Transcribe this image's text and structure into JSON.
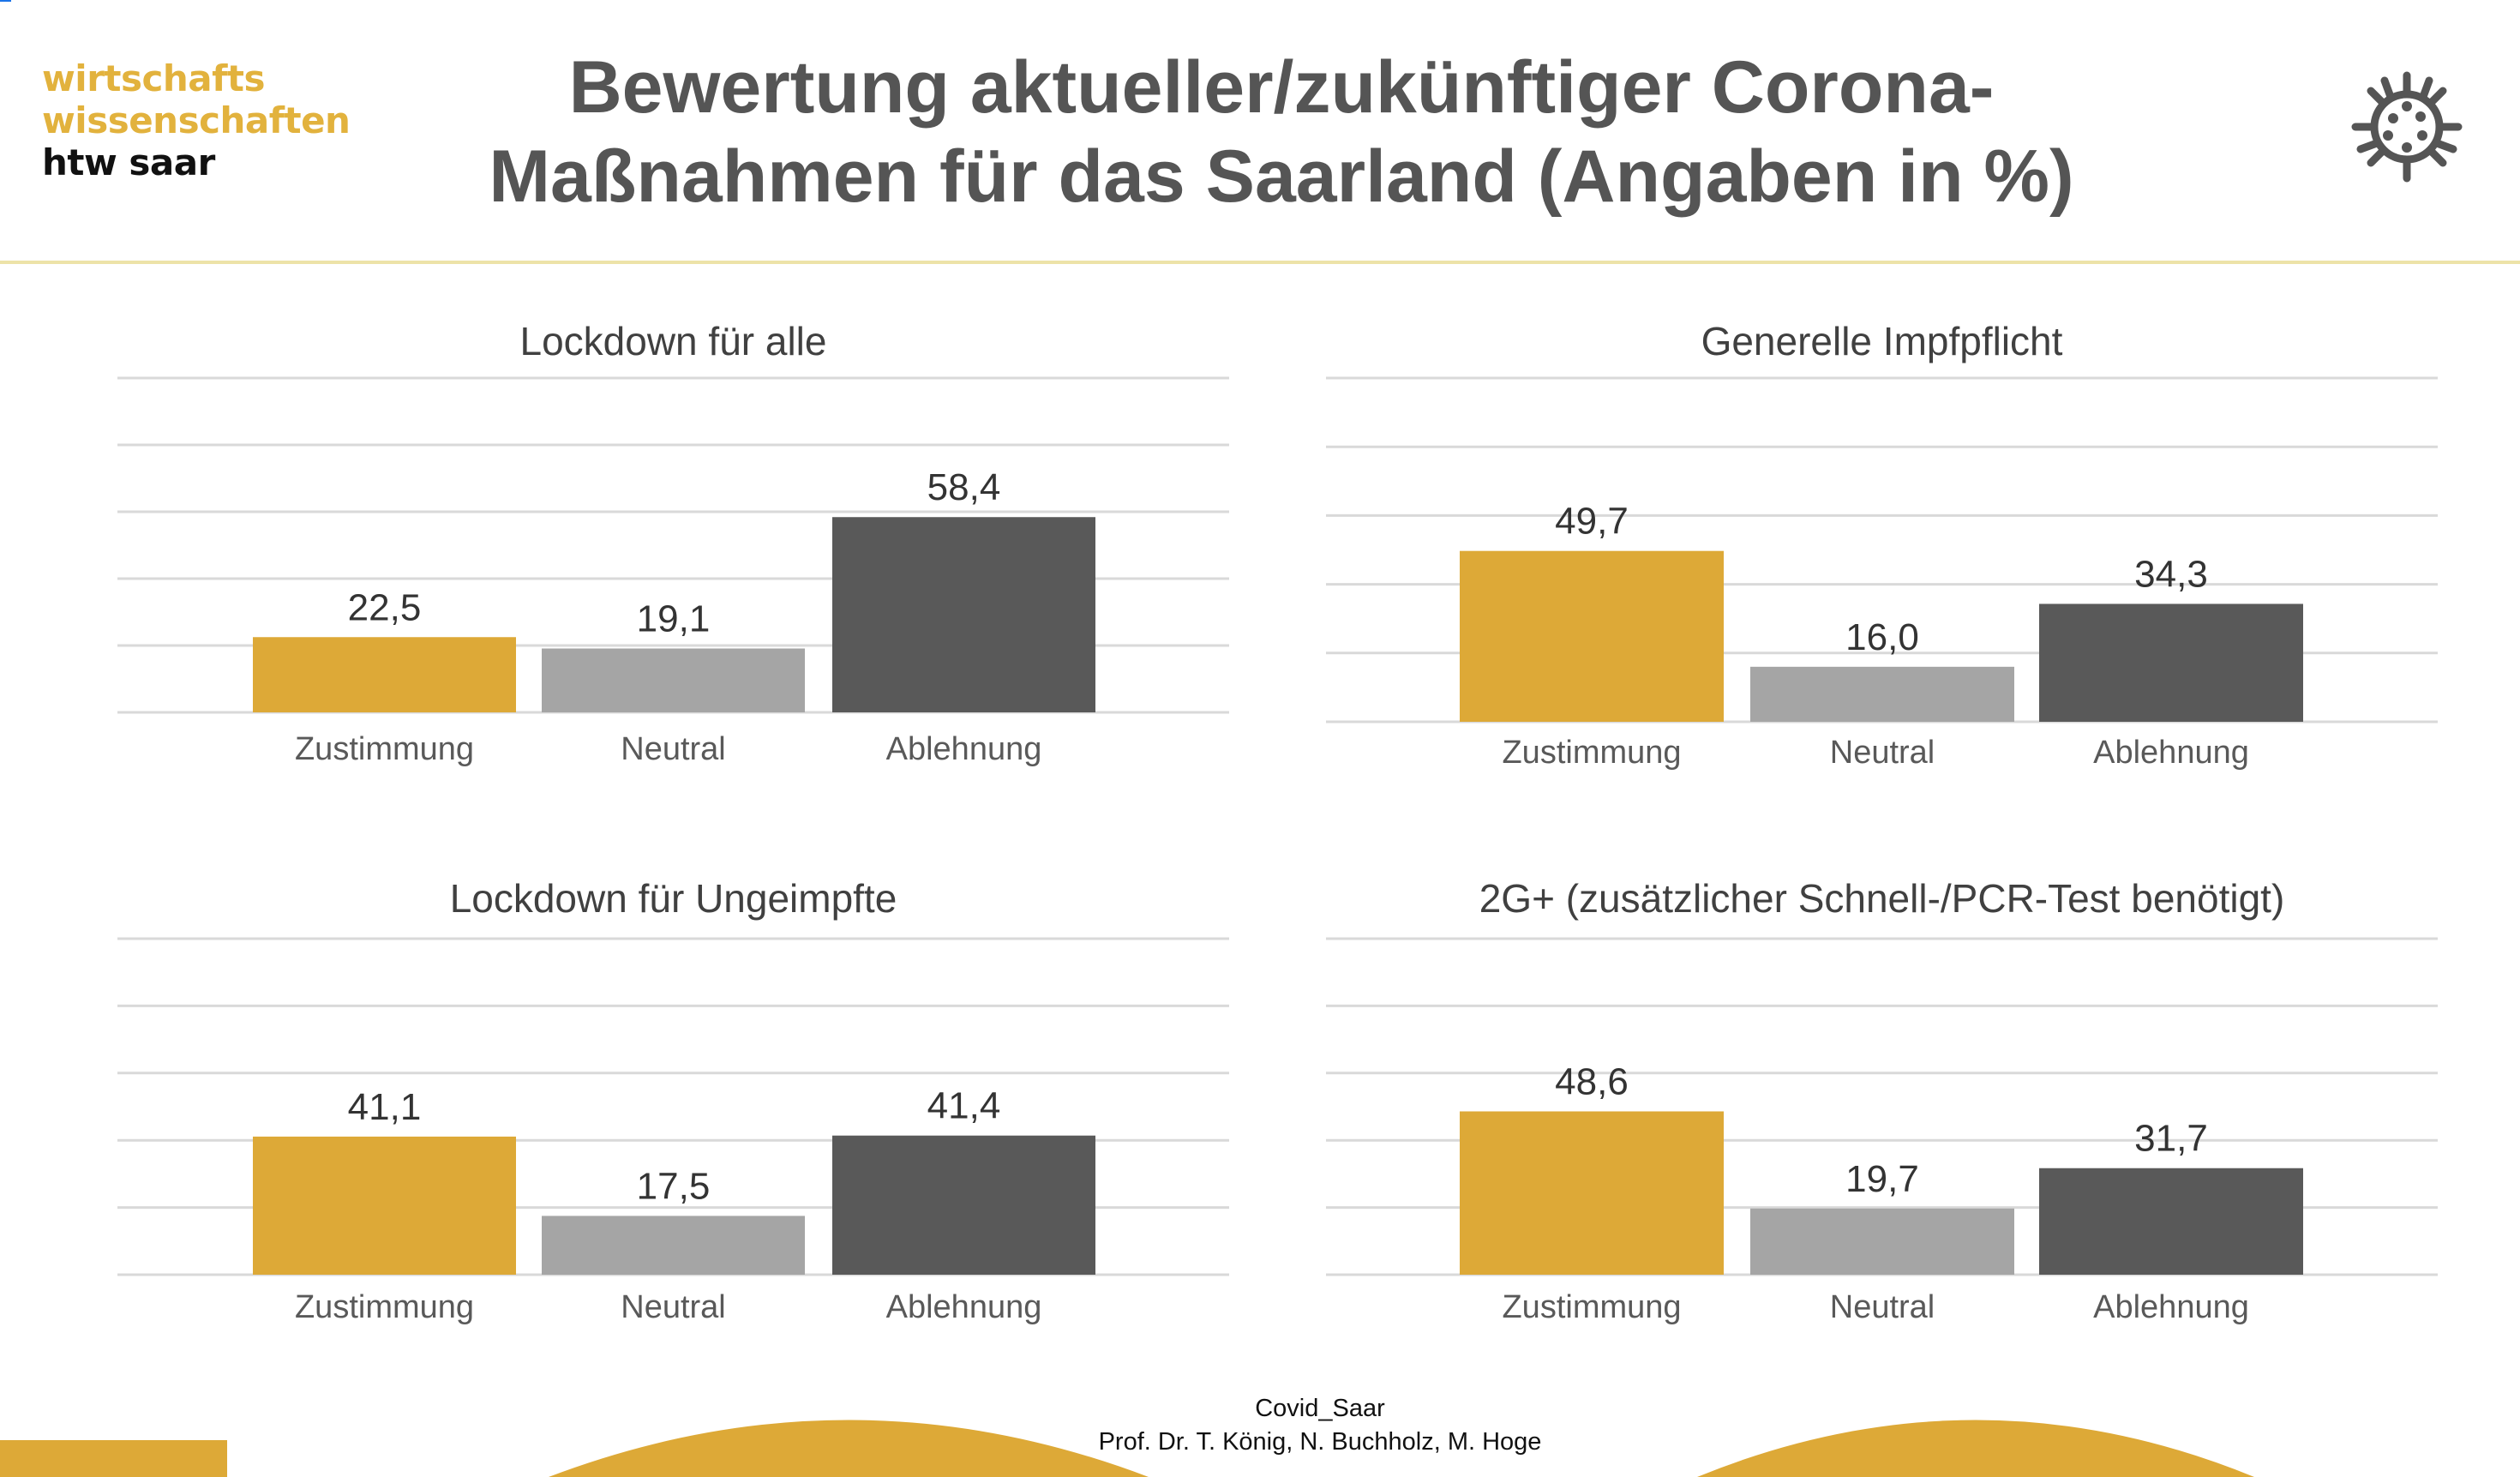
{
  "logo": {
    "line1": "wirtschafts",
    "line2": "wissenschaften",
    "line3": "htw saar"
  },
  "header": {
    "title_line1": "Bewertung aktueller/zukünftiger Corona-",
    "title_line2": "Maßnahmen für das Saarland (Angaben in %)",
    "icon": "virus-icon"
  },
  "colors": {
    "zustimmung": "#DDA937",
    "neutral": "#A5A5A5",
    "ablehnung": "#595959",
    "grid": "#D9D9D9",
    "text": "#404040",
    "accent": "#DDA937"
  },
  "chart_data": [
    {
      "type": "bar",
      "title": "Lockdown für alle",
      "categories": [
        "Zustimmung",
        "Neutral",
        "Ablehnung"
      ],
      "values": [
        22.5,
        19.1,
        58.4
      ],
      "value_labels": [
        "22,5",
        "19,1",
        "58,4"
      ],
      "ylim": [
        0,
        100
      ],
      "grid": true,
      "grid_step": 20,
      "xlabel": "",
      "ylabel": ""
    },
    {
      "type": "bar",
      "title": "Generelle Impfpflicht",
      "categories": [
        "Zustimmung",
        "Neutral",
        "Ablehnung"
      ],
      "values": [
        49.7,
        16.0,
        34.3
      ],
      "value_labels": [
        "49,7",
        "16,0",
        "34,3"
      ],
      "ylim": [
        0,
        100
      ],
      "grid": true,
      "grid_step": 20,
      "xlabel": "",
      "ylabel": ""
    },
    {
      "type": "bar",
      "title": "Lockdown für Ungeimpfte",
      "categories": [
        "Zustimmung",
        "Neutral",
        "Ablehnung"
      ],
      "values": [
        41.1,
        17.5,
        41.4
      ],
      "value_labels": [
        "41,1",
        "17,5",
        "41,4"
      ],
      "ylim": [
        0,
        100
      ],
      "grid": true,
      "grid_step": 20,
      "xlabel": "",
      "ylabel": ""
    },
    {
      "type": "bar",
      "title": "2G+ (zusätzlicher  Schnell-/PCR-Test  benötigt)",
      "categories": [
        "Zustimmung",
        "Neutral",
        "Ablehnung"
      ],
      "values": [
        48.6,
        19.7,
        31.7
      ],
      "value_labels": [
        "48,6",
        "19,7",
        "31,7"
      ],
      "ylim": [
        0,
        100
      ],
      "grid": true,
      "grid_step": 20,
      "xlabel": "",
      "ylabel": ""
    }
  ],
  "footer": {
    "line1": "Covid_Saar",
    "line2": "Prof. Dr. T. König, N. Buchholz, M. Hoge"
  }
}
